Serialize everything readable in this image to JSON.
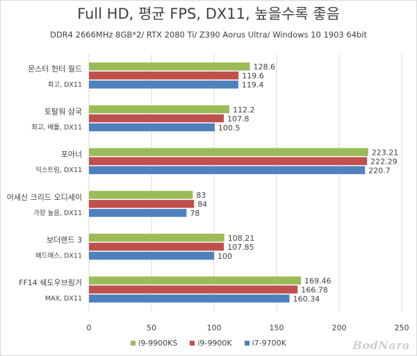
{
  "colors": {
    "i9_9900KS": "#9bbb59",
    "i9_9900K": "#c0504d",
    "i7_9700K": "#4f81bd",
    "grid": "#d9d9d9",
    "text": "#404040"
  },
  "watermark": "BodNara",
  "chart_data": {
    "type": "bar",
    "orientation": "horizontal",
    "title": "Full HD, 평균 FPS, DX11, 높을수록 좋음",
    "subtitle": "DDR4 2666MHz 8GB*2/ RTX 2080 Ti/ Z390 Aorus Ultra/ Windows 10 1903 64bit",
    "categories": [
      {
        "line1": "몬스터 헌터 월드",
        "line2": "최고, DX11"
      },
      {
        "line1": "토탈워 삼국",
        "line2": "최고, 배틀, DX11"
      },
      {
        "line1": "포아너",
        "line2": "익스트림, DX11"
      },
      {
        "line1": "어새신 크리드 오디세이",
        "line2": "가장 높음, DX11"
      },
      {
        "line1": "보더랜드 3",
        "line2": "배드애스, DX11"
      },
      {
        "line1": "FF14 쉐도우브링거",
        "line2": "MAX, DX11"
      }
    ],
    "series": [
      {
        "name": "i9-9900KS",
        "color": "#9bbb59",
        "values": [
          128.6,
          112.2,
          223.21,
          83,
          108.21,
          169.46
        ],
        "labels": [
          "128.6",
          "112.2",
          "223.21",
          "83",
          "108.21",
          "169.46"
        ]
      },
      {
        "name": "i9-9900K",
        "color": "#c0504d",
        "values": [
          119.6,
          107.8,
          222.29,
          84,
          107.85,
          166.78
        ],
        "labels": [
          "119.6",
          "107.8",
          "222.29",
          "84",
          "107.85",
          "166.78"
        ]
      },
      {
        "name": "i7-9700K",
        "color": "#4f81bd",
        "values": [
          119.4,
          100.5,
          220.7,
          78,
          100,
          160.34
        ],
        "labels": [
          "119.4",
          "100.5",
          "220.7",
          "78",
          "100",
          "160.34"
        ]
      }
    ],
    "xlim": [
      0,
      250
    ],
    "xticks": [
      0,
      50,
      100,
      150,
      200,
      250
    ],
    "grid": true,
    "legend_position": "bottom"
  }
}
